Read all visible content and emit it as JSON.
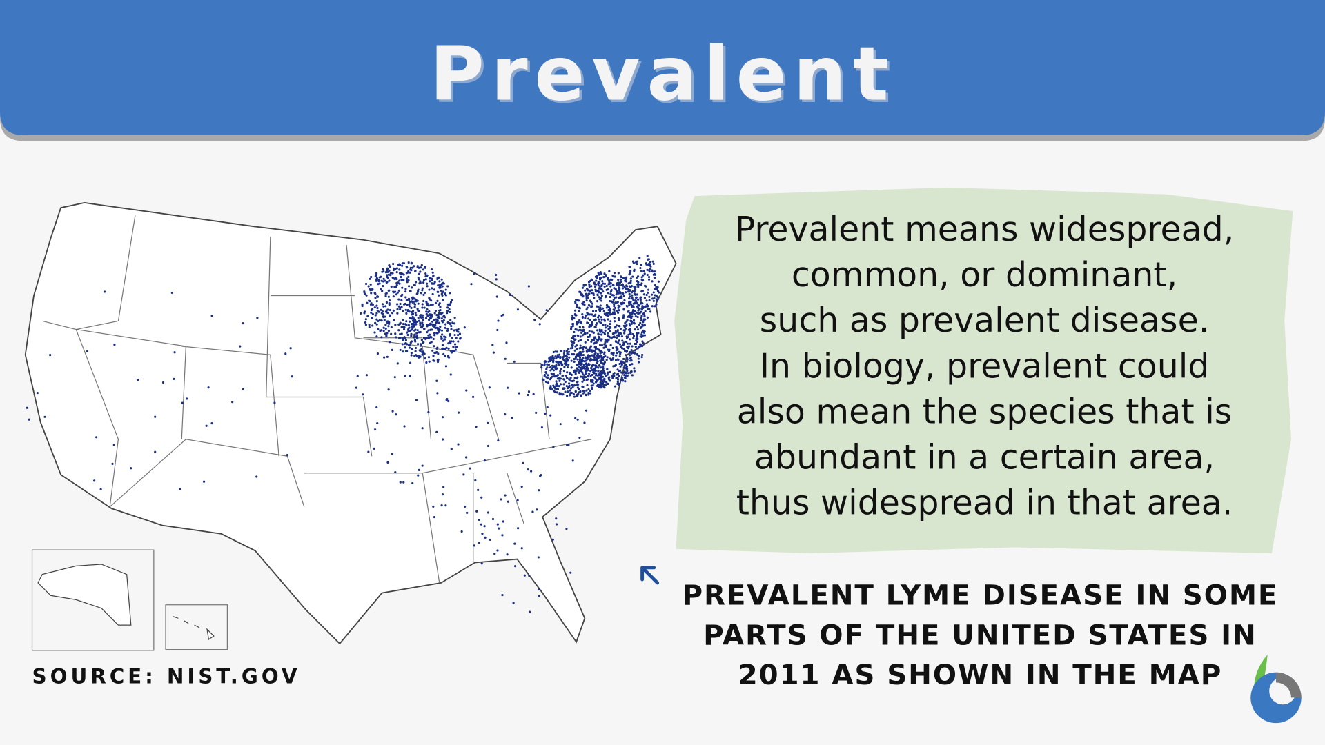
{
  "header": {
    "title": "Prevalent"
  },
  "definition": {
    "lines": [
      "Prevalent means widespread,",
      "common, or dominant,",
      "such as prevalent disease.",
      "In biology, prevalent could",
      "also mean the species that is",
      "abundant in a certain area,",
      "thus widespread in that area."
    ]
  },
  "caption": {
    "lines": [
      "PREVALENT LYME DISEASE IN SOME",
      "PARTS OF THE UNITED STATES IN",
      "2011 AS SHOWN IN THE MAP"
    ]
  },
  "source": "SOURCE: NIST.GOV"
}
